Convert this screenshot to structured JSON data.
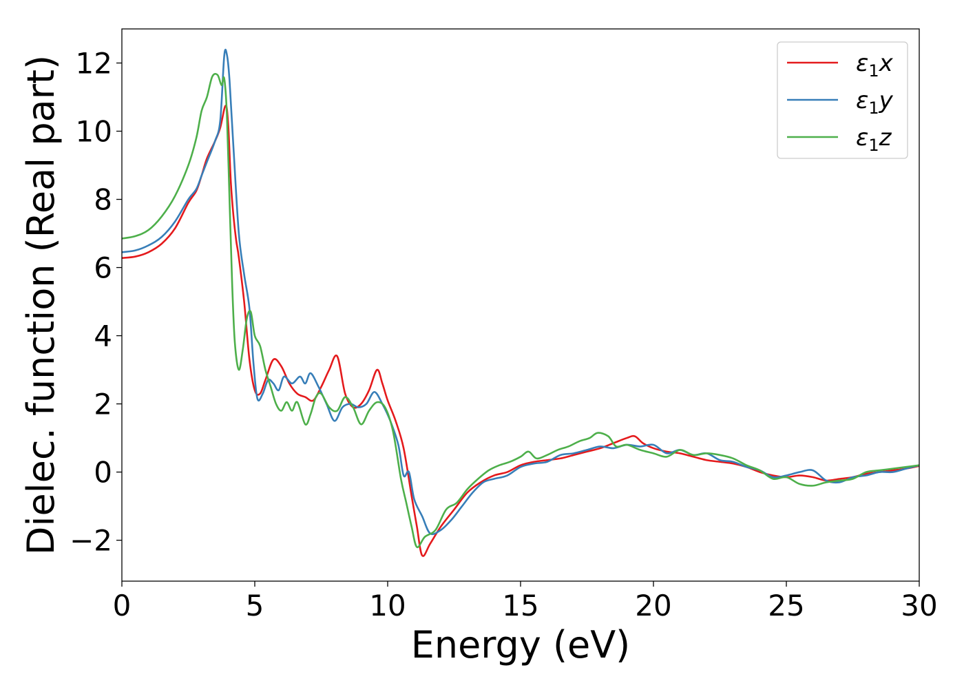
{
  "chart_data": {
    "type": "line",
    "title": "",
    "xlabel": "Energy (eV)",
    "ylabel": "Dielec. function (Real part)",
    "xlim": [
      0,
      30
    ],
    "ylim": [
      -3.2,
      13.0
    ],
    "xticks": [
      0,
      5,
      10,
      15,
      20,
      25,
      30
    ],
    "yticks": [
      -2,
      0,
      2,
      4,
      6,
      8,
      10,
      12
    ],
    "xtick_labels": [
      "0",
      "5",
      "10",
      "15",
      "20",
      "25",
      "30"
    ],
    "ytick_labels": [
      "−2",
      "0",
      "2",
      "4",
      "6",
      "8",
      "10",
      "12"
    ],
    "grid": false,
    "legend_position": "top-right",
    "series": [
      {
        "name": "ε₁x",
        "legend_base": "ε",
        "legend_sub": "1",
        "legend_var": "x",
        "color": "#e41a1c",
        "points": [
          [
            0,
            6.28
          ],
          [
            0.5,
            6.32
          ],
          [
            1.0,
            6.45
          ],
          [
            1.5,
            6.7
          ],
          [
            2.0,
            7.15
          ],
          [
            2.5,
            7.9
          ],
          [
            2.8,
            8.25
          ],
          [
            3.0,
            8.7
          ],
          [
            3.2,
            9.2
          ],
          [
            3.5,
            9.7
          ],
          [
            3.7,
            10.1
          ],
          [
            3.9,
            10.75
          ],
          [
            4.0,
            10.2
          ],
          [
            4.1,
            8.5
          ],
          [
            4.2,
            7.5
          ],
          [
            4.3,
            6.8
          ],
          [
            4.4,
            6.3
          ],
          [
            4.6,
            5.0
          ],
          [
            4.8,
            3.3
          ],
          [
            5.0,
            2.4
          ],
          [
            5.2,
            2.3
          ],
          [
            5.4,
            2.7
          ],
          [
            5.7,
            3.3
          ],
          [
            6.0,
            3.1
          ],
          [
            6.3,
            2.6
          ],
          [
            6.6,
            2.3
          ],
          [
            6.9,
            2.2
          ],
          [
            7.2,
            2.1
          ],
          [
            7.5,
            2.5
          ],
          [
            7.8,
            3.0
          ],
          [
            8.1,
            3.4
          ],
          [
            8.4,
            2.3
          ],
          [
            8.7,
            1.9
          ],
          [
            9.0,
            2.0
          ],
          [
            9.3,
            2.4
          ],
          [
            9.6,
            3.0
          ],
          [
            9.8,
            2.6
          ],
          [
            10.0,
            2.1
          ],
          [
            10.3,
            1.5
          ],
          [
            10.6,
            0.7
          ],
          [
            10.9,
            -0.7
          ],
          [
            11.1,
            -1.6
          ],
          [
            11.3,
            -2.45
          ],
          [
            11.6,
            -2.1
          ],
          [
            12.0,
            -1.6
          ],
          [
            12.5,
            -1.1
          ],
          [
            13.0,
            -0.6
          ],
          [
            13.5,
            -0.3
          ],
          [
            14.0,
            -0.1
          ],
          [
            14.5,
            0.0
          ],
          [
            15.0,
            0.2
          ],
          [
            15.5,
            0.3
          ],
          [
            16.0,
            0.35
          ],
          [
            16.5,
            0.4
          ],
          [
            17.0,
            0.5
          ],
          [
            17.5,
            0.6
          ],
          [
            18.0,
            0.7
          ],
          [
            18.5,
            0.85
          ],
          [
            19.0,
            1.0
          ],
          [
            19.3,
            1.05
          ],
          [
            19.6,
            0.85
          ],
          [
            20.0,
            0.7
          ],
          [
            20.5,
            0.6
          ],
          [
            21.0,
            0.55
          ],
          [
            21.5,
            0.45
          ],
          [
            22.0,
            0.35
          ],
          [
            22.5,
            0.3
          ],
          [
            23.0,
            0.25
          ],
          [
            23.5,
            0.15
          ],
          [
            24.0,
            0.0
          ],
          [
            24.5,
            -0.1
          ],
          [
            25.0,
            -0.15
          ],
          [
            25.5,
            -0.1
          ],
          [
            26.0,
            -0.15
          ],
          [
            26.5,
            -0.25
          ],
          [
            27.0,
            -0.2
          ],
          [
            27.5,
            -0.15
          ],
          [
            28.0,
            -0.05
          ],
          [
            28.5,
            0.0
          ],
          [
            29.0,
            0.05
          ],
          [
            29.5,
            0.1
          ],
          [
            30.0,
            0.18
          ]
        ]
      },
      {
        "name": "ε₁y",
        "legend_base": "ε",
        "legend_sub": "1",
        "legend_var": "y",
        "color": "#377eb8",
        "points": [
          [
            0,
            6.45
          ],
          [
            0.5,
            6.5
          ],
          [
            1.0,
            6.65
          ],
          [
            1.5,
            6.9
          ],
          [
            2.0,
            7.35
          ],
          [
            2.5,
            8.0
          ],
          [
            2.8,
            8.3
          ],
          [
            3.0,
            8.7
          ],
          [
            3.2,
            9.1
          ],
          [
            3.5,
            9.7
          ],
          [
            3.7,
            10.3
          ],
          [
            3.85,
            12.2
          ],
          [
            3.95,
            12.25
          ],
          [
            4.05,
            11.5
          ],
          [
            4.2,
            9.5
          ],
          [
            4.4,
            7.0
          ],
          [
            4.6,
            5.8
          ],
          [
            4.8,
            4.8
          ],
          [
            4.95,
            3.2
          ],
          [
            5.1,
            2.15
          ],
          [
            5.3,
            2.3
          ],
          [
            5.5,
            2.7
          ],
          [
            5.7,
            2.6
          ],
          [
            5.9,
            2.4
          ],
          [
            6.1,
            2.8
          ],
          [
            6.4,
            2.6
          ],
          [
            6.7,
            2.8
          ],
          [
            6.9,
            2.6
          ],
          [
            7.1,
            2.9
          ],
          [
            7.4,
            2.5
          ],
          [
            7.7,
            2.0
          ],
          [
            8.0,
            1.5
          ],
          [
            8.3,
            1.9
          ],
          [
            8.6,
            2.0
          ],
          [
            8.9,
            1.9
          ],
          [
            9.2,
            2.0
          ],
          [
            9.5,
            2.35
          ],
          [
            9.8,
            2.0
          ],
          [
            10.1,
            1.5
          ],
          [
            10.4,
            0.8
          ],
          [
            10.6,
            -0.1
          ],
          [
            10.8,
            0.0
          ],
          [
            11.0,
            -0.8
          ],
          [
            11.3,
            -1.3
          ],
          [
            11.6,
            -1.8
          ],
          [
            12.0,
            -1.7
          ],
          [
            12.4,
            -1.4
          ],
          [
            12.8,
            -1.0
          ],
          [
            13.2,
            -0.6
          ],
          [
            13.6,
            -0.3
          ],
          [
            14.0,
            -0.2
          ],
          [
            14.5,
            -0.1
          ],
          [
            15.0,
            0.15
          ],
          [
            15.5,
            0.25
          ],
          [
            16.0,
            0.3
          ],
          [
            16.5,
            0.5
          ],
          [
            17.0,
            0.55
          ],
          [
            17.5,
            0.65
          ],
          [
            18.0,
            0.75
          ],
          [
            18.5,
            0.7
          ],
          [
            19.0,
            0.8
          ],
          [
            19.5,
            0.75
          ],
          [
            20.0,
            0.8
          ],
          [
            20.5,
            0.55
          ],
          [
            21.0,
            0.65
          ],
          [
            21.5,
            0.5
          ],
          [
            22.0,
            0.55
          ],
          [
            22.5,
            0.35
          ],
          [
            23.0,
            0.3
          ],
          [
            23.5,
            0.15
          ],
          [
            24.0,
            0.05
          ],
          [
            24.5,
            -0.15
          ],
          [
            25.0,
            -0.1
          ],
          [
            25.5,
            0.0
          ],
          [
            26.0,
            0.05
          ],
          [
            26.5,
            -0.25
          ],
          [
            27.0,
            -0.3
          ],
          [
            27.5,
            -0.15
          ],
          [
            28.0,
            -0.1
          ],
          [
            28.5,
            0.0
          ],
          [
            29.0,
            0.0
          ],
          [
            29.5,
            0.1
          ],
          [
            30.0,
            0.2
          ]
        ]
      },
      {
        "name": "ε₁z",
        "legend_base": "ε",
        "legend_sub": "1",
        "legend_var": "z",
        "color": "#4daf4a",
        "points": [
          [
            0,
            6.85
          ],
          [
            0.5,
            6.92
          ],
          [
            1.0,
            7.1
          ],
          [
            1.5,
            7.5
          ],
          [
            2.0,
            8.1
          ],
          [
            2.5,
            9.0
          ],
          [
            2.8,
            9.8
          ],
          [
            3.0,
            10.6
          ],
          [
            3.2,
            11.0
          ],
          [
            3.4,
            11.6
          ],
          [
            3.6,
            11.65
          ],
          [
            3.75,
            11.35
          ],
          [
            3.85,
            11.55
          ],
          [
            3.95,
            10.5
          ],
          [
            4.05,
            8.0
          ],
          [
            4.15,
            5.5
          ],
          [
            4.25,
            3.8
          ],
          [
            4.4,
            3.0
          ],
          [
            4.55,
            3.6
          ],
          [
            4.7,
            4.5
          ],
          [
            4.85,
            4.7
          ],
          [
            5.0,
            4.0
          ],
          [
            5.2,
            3.7
          ],
          [
            5.4,
            3.0
          ],
          [
            5.6,
            2.5
          ],
          [
            5.8,
            2.0
          ],
          [
            6.0,
            1.8
          ],
          [
            6.2,
            2.05
          ],
          [
            6.4,
            1.8
          ],
          [
            6.6,
            2.05
          ],
          [
            6.9,
            1.4
          ],
          [
            7.1,
            1.7
          ],
          [
            7.3,
            2.2
          ],
          [
            7.5,
            2.3
          ],
          [
            7.8,
            1.9
          ],
          [
            8.1,
            1.8
          ],
          [
            8.4,
            2.2
          ],
          [
            8.7,
            1.9
          ],
          [
            9.0,
            1.4
          ],
          [
            9.3,
            1.8
          ],
          [
            9.6,
            2.05
          ],
          [
            9.9,
            1.9
          ],
          [
            10.2,
            1.2
          ],
          [
            10.5,
            -0.2
          ],
          [
            10.7,
            -0.9
          ],
          [
            10.9,
            -1.6
          ],
          [
            11.1,
            -2.2
          ],
          [
            11.4,
            -1.9
          ],
          [
            11.8,
            -1.7
          ],
          [
            12.2,
            -1.1
          ],
          [
            12.6,
            -0.9
          ],
          [
            13.0,
            -0.5
          ],
          [
            13.4,
            -0.2
          ],
          [
            13.8,
            0.05
          ],
          [
            14.2,
            0.2
          ],
          [
            14.6,
            0.3
          ],
          [
            15.0,
            0.45
          ],
          [
            15.3,
            0.6
          ],
          [
            15.6,
            0.4
          ],
          [
            16.0,
            0.5
          ],
          [
            16.4,
            0.65
          ],
          [
            16.8,
            0.75
          ],
          [
            17.2,
            0.9
          ],
          [
            17.6,
            1.0
          ],
          [
            17.9,
            1.15
          ],
          [
            18.3,
            1.05
          ],
          [
            18.6,
            0.75
          ],
          [
            19.0,
            0.8
          ],
          [
            19.5,
            0.65
          ],
          [
            20.0,
            0.55
          ],
          [
            20.5,
            0.45
          ],
          [
            21.0,
            0.65
          ],
          [
            21.5,
            0.5
          ],
          [
            22.0,
            0.55
          ],
          [
            22.5,
            0.5
          ],
          [
            23.0,
            0.4
          ],
          [
            23.5,
            0.2
          ],
          [
            24.0,
            0.05
          ],
          [
            24.5,
            -0.2
          ],
          [
            25.0,
            -0.15
          ],
          [
            25.5,
            -0.35
          ],
          [
            26.0,
            -0.4
          ],
          [
            26.5,
            -0.3
          ],
          [
            27.0,
            -0.25
          ],
          [
            27.5,
            -0.2
          ],
          [
            28.0,
            0.0
          ],
          [
            28.5,
            0.05
          ],
          [
            29.0,
            0.1
          ],
          [
            29.5,
            0.15
          ],
          [
            30.0,
            0.2
          ]
        ]
      }
    ]
  }
}
